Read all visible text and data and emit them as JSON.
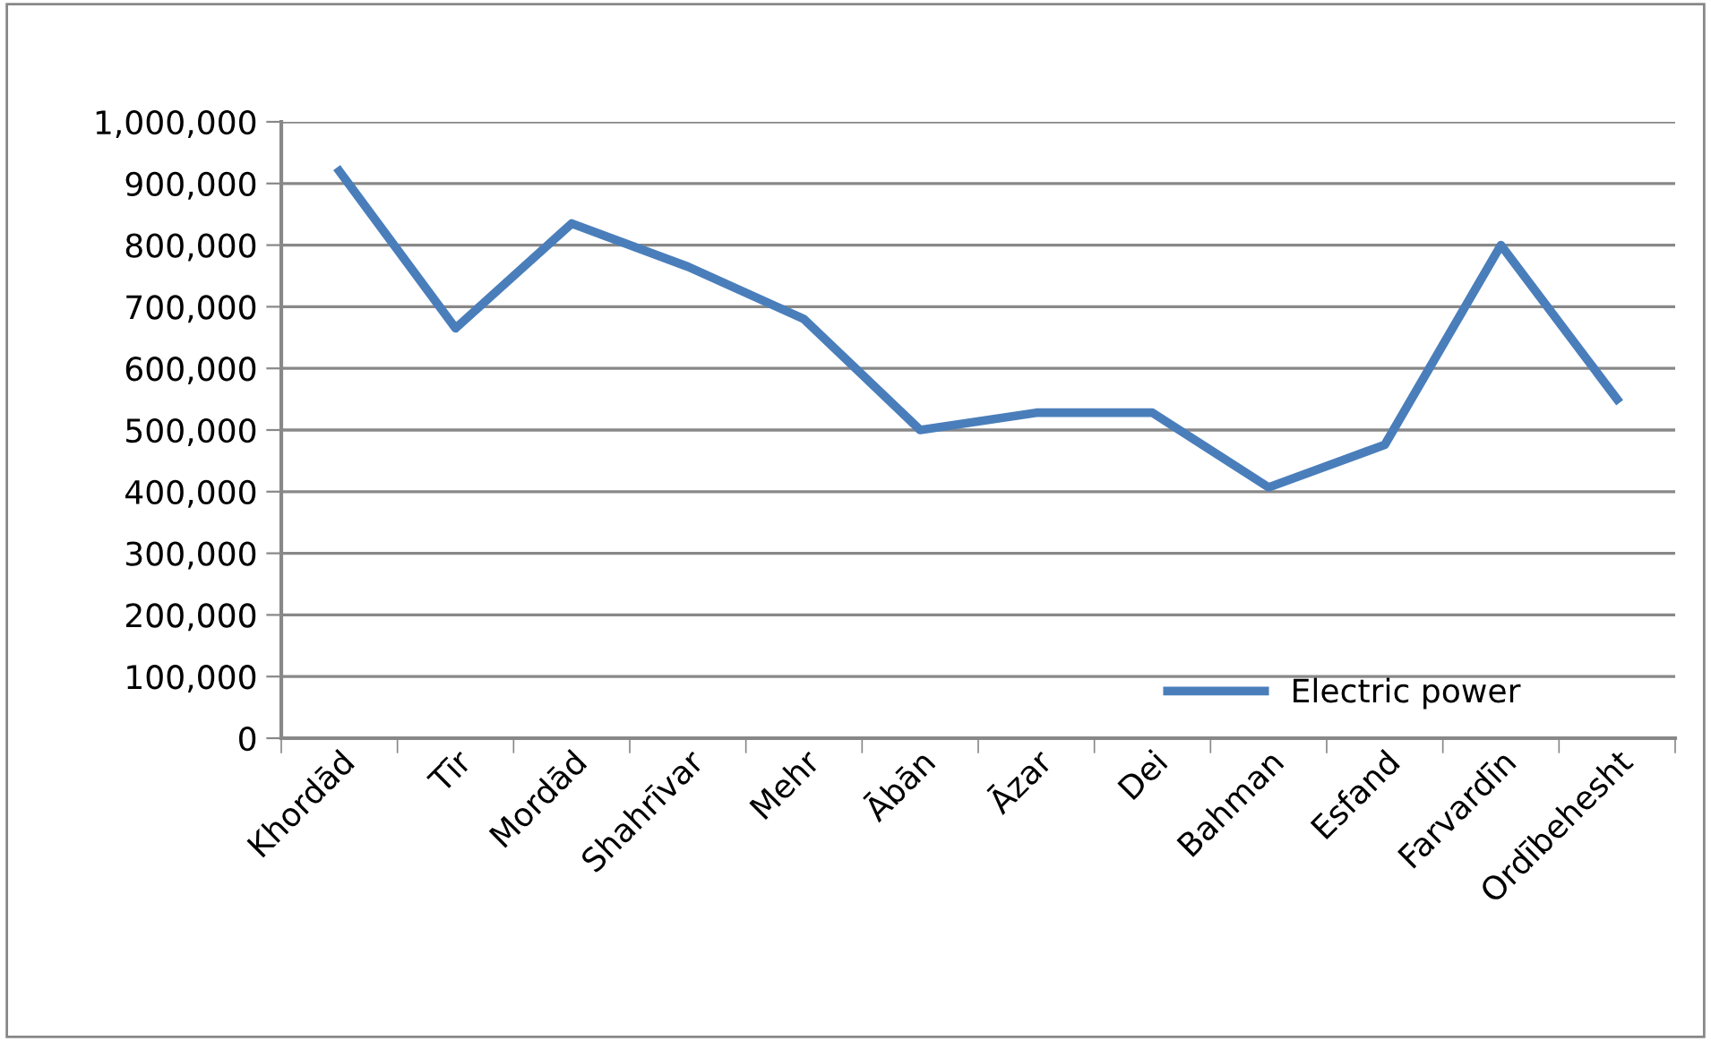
{
  "chart_data": {
    "type": "line",
    "categories": [
      "Khordād",
      "Tīr",
      "Mordād",
      "Shahrīvar",
      "Mehr",
      "Ābān",
      "Āzar",
      "Dei",
      "Bahman",
      "Esfand",
      "Farvardīn",
      "Ordībehesht"
    ],
    "series": [
      {
        "name": "Electric power",
        "color": "#4a7ebb",
        "values": [
          920000,
          665000,
          835000,
          765000,
          680000,
          500000,
          528000,
          528000,
          407000,
          476000,
          800000,
          550000
        ]
      }
    ],
    "ylim": [
      0,
      1000000
    ],
    "yticks": [
      {
        "value": 0,
        "label": "0"
      },
      {
        "value": 100000,
        "label": "100,000"
      },
      {
        "value": 200000,
        "label": "200,000"
      },
      {
        "value": 300000,
        "label": "300,000"
      },
      {
        "value": 400000,
        "label": "400,000"
      },
      {
        "value": 500000,
        "label": "500,000"
      },
      {
        "value": 600000,
        "label": "600,000"
      },
      {
        "value": 700000,
        "label": "700,000"
      },
      {
        "value": 800000,
        "label": "800,000"
      },
      {
        "value": 900000,
        "label": "900,000"
      },
      {
        "value": 1000000,
        "label": "1,000,000"
      }
    ],
    "grid": "y",
    "legend": "bottom right",
    "marker": "none",
    "line_style": "solid"
  }
}
